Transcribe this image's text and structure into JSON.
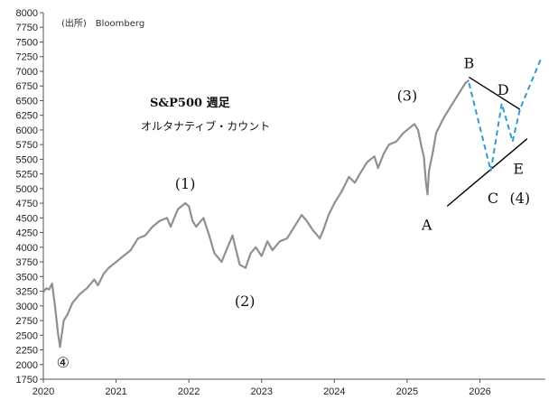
{
  "chart_data": {
    "type": "line",
    "source": "(出所)　Bloomberg",
    "title": "S&P500 週足",
    "subtitle": "オルタナティブ・カウント",
    "xlabel": "",
    "ylabel": "",
    "ylim": [
      1750,
      8000
    ],
    "xlim": [
      2020.0,
      2026.9
    ],
    "y_ticks": [
      1750,
      2000,
      2250,
      2500,
      2750,
      3000,
      3250,
      3500,
      3750,
      4000,
      4250,
      4500,
      4750,
      5000,
      5250,
      5500,
      5750,
      6000,
      6250,
      6500,
      6750,
      7000,
      7250,
      7500,
      7750,
      8000
    ],
    "x_ticks": [
      {
        "value": 2020,
        "label": "2020"
      },
      {
        "value": 2021,
        "label": "2021"
      },
      {
        "value": 2022,
        "label": "2022"
      },
      {
        "value": 2023,
        "label": "2023"
      },
      {
        "value": 2024,
        "label": "2024"
      },
      {
        "value": 2025,
        "label": "2025"
      },
      {
        "value": 2026,
        "label": "2026"
      }
    ],
    "grid": false,
    "legend": "none",
    "colors": {
      "price": "#909090",
      "trendline": "#000000",
      "projection": "#2e9ecf"
    },
    "series": [
      {
        "x": [
          2020.0,
          2020.04,
          2020.08,
          2020.12,
          2020.16,
          2020.2,
          2020.23,
          2020.28,
          2020.33,
          2020.4,
          2020.5,
          2020.6,
          2020.7,
          2020.75,
          2020.83,
          2020.9,
          2021.0,
          2021.1,
          2021.2,
          2021.3,
          2021.4,
          2021.5,
          2021.6,
          2021.7,
          2021.75,
          2021.85,
          2021.95,
          2022.0,
          2022.05,
          2022.1,
          2022.2,
          2022.28,
          2022.35,
          2022.45,
          2022.5,
          2022.6,
          2022.65,
          2022.7,
          2022.78,
          2022.85,
          2022.92,
          2023.0,
          2023.08,
          2023.15,
          2023.25,
          2023.35,
          2023.45,
          2023.55,
          2023.62,
          2023.7,
          2023.8,
          2023.85,
          2023.92,
          2024.0,
          2024.1,
          2024.2,
          2024.28,
          2024.35,
          2024.45,
          2024.55,
          2024.6,
          2024.68,
          2024.75,
          2024.85,
          2024.95,
          2025.05,
          2025.1,
          2025.15,
          2025.2,
          2025.23,
          2025.26,
          2025.28,
          2025.3,
          2025.35,
          2025.4,
          2025.5,
          2025.6,
          2025.7,
          2025.8,
          2025.85
        ],
        "values": [
          3230,
          3300,
          3280,
          3380,
          3000,
          2550,
          2300,
          2750,
          2850,
          3050,
          3200,
          3300,
          3450,
          3350,
          3550,
          3650,
          3750,
          3850,
          3950,
          4150,
          4200,
          4350,
          4450,
          4500,
          4350,
          4650,
          4750,
          4700,
          4450,
          4350,
          4500,
          4200,
          3900,
          3750,
          3900,
          4200,
          3950,
          3700,
          3650,
          3900,
          4000,
          3850,
          4100,
          3950,
          4100,
          4150,
          4350,
          4550,
          4450,
          4300,
          4150,
          4300,
          4550,
          4750,
          4950,
          5200,
          5100,
          5250,
          5450,
          5550,
          5350,
          5600,
          5750,
          5800,
          5950,
          6050,
          6100,
          6000,
          5700,
          5550,
          5100,
          4900,
          5300,
          5600,
          5950,
          6200,
          6400,
          6600,
          6800,
          6850
        ]
      }
    ],
    "annotations": [
      {
        "label": "④",
        "x": 2020.27,
        "y": 1950
      },
      {
        "label": "(1)",
        "x": 2021.95,
        "y": 5000
      },
      {
        "label": "(2)",
        "x": 2022.77,
        "y": 3000
      },
      {
        "label": "(3)",
        "x": 2025.0,
        "y": 6500
      },
      {
        "label": "A",
        "x": 2025.27,
        "y": 4300
      },
      {
        "label": "B",
        "x": 2025.85,
        "y": 7050
      },
      {
        "label": "C",
        "x": 2026.18,
        "y": 4750
      },
      {
        "label": "D",
        "x": 2026.32,
        "y": 6600
      },
      {
        "label": "E",
        "x": 2026.53,
        "y": 5250
      },
      {
        "label": "(4)",
        "x": 2026.55,
        "y": 4750
      }
    ],
    "trendlines": [
      {
        "x": [
          2025.55,
          2026.65
        ],
        "y": [
          4700,
          5850
        ]
      },
      {
        "x": [
          2025.85,
          2026.55
        ],
        "y": [
          6900,
          6350
        ]
      }
    ],
    "projection": {
      "x": [
        2025.85,
        2026.15,
        2026.3,
        2026.45,
        2026.55,
        2026.85
      ],
      "y": [
        6800,
        5300,
        6450,
        5800,
        6350,
        7250
      ]
    }
  }
}
